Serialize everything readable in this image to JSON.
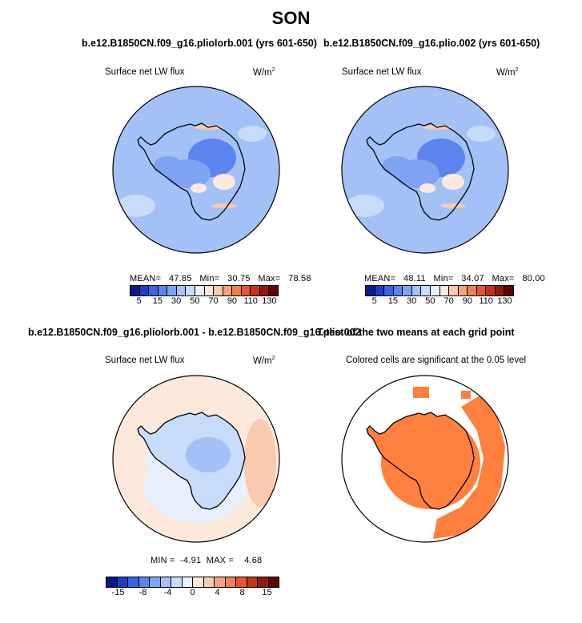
{
  "figure": {
    "title": "SON",
    "panels": [
      {
        "title": "b.e12.B1850CN.f09_g16.pliolorb.001 (yrs 601-650)",
        "left_label": "Surface net LW flux",
        "units": "W/m",
        "units_sup": "2",
        "stats": {
          "mean_label": "MEAN=",
          "mean": "47.85",
          "min_label": "Min=",
          "min": "30.75",
          "max_label": "Max=",
          "max": "78.58"
        }
      },
      {
        "title": "b.e12.B1850CN.f09_g16.plio.002 (yrs 601-650)",
        "left_label": "Surface net LW flux",
        "units": "W/m",
        "units_sup": "2",
        "stats": {
          "mean_label": "MEAN=",
          "mean": "48.11",
          "min_label": "Min=",
          "min": "34.07",
          "max_label": "Max=",
          "max": "80.00"
        }
      },
      {
        "title": "b.e12.B1850CN.f09_g16.pliolorb.001 - b.e12.B1850CN.f09_g16.plio.002",
        "left_label": "Surface net LW flux",
        "units": "W/m",
        "units_sup": "2",
        "stats": {
          "min_label": "MIN =",
          "min": "-4.91",
          "max_label": "MAX =",
          "max": "4.68"
        }
      },
      {
        "title": "T-test of the two means at each grid point",
        "left_label": "Colored cells are significant at the 0.05 level"
      }
    ]
  },
  "chart_data": [
    {
      "type": "heatmap",
      "projection": "south polar stereographic",
      "title": "b.e12.B1850CN.f09_g16.pliolorb.001 (yrs 601-650)",
      "variable": "Surface net LW flux",
      "units": "W/m2",
      "mean": 47.85,
      "min": 30.75,
      "max": 78.58,
      "colorbar": {
        "tick_labels": [
          "5",
          "15",
          "30",
          "50",
          "70",
          "90",
          "110",
          "130"
        ],
        "levels": [
          5,
          10,
          15,
          20,
          30,
          40,
          50,
          60,
          70,
          80,
          90,
          100,
          110,
          120,
          130
        ],
        "colors": [
          "#0a1a8c",
          "#1f3cc8",
          "#3a64e6",
          "#5c84ee",
          "#7ea3f2",
          "#a3c1f7",
          "#c7dbfa",
          "#e8f0fd",
          "#fde8dc",
          "#f9caae",
          "#f5a57e",
          "#ee7f55",
          "#e2572f",
          "#c43518",
          "#921a0c",
          "#5e0606"
        ]
      }
    },
    {
      "type": "heatmap",
      "projection": "south polar stereographic",
      "title": "b.e12.B1850CN.f09_g16.plio.002 (yrs 601-650)",
      "variable": "Surface net LW flux",
      "units": "W/m2",
      "mean": 48.11,
      "min": 34.07,
      "max": 80.0,
      "colorbar": {
        "tick_labels": [
          "5",
          "15",
          "30",
          "50",
          "70",
          "90",
          "110",
          "130"
        ],
        "levels": [
          5,
          10,
          15,
          20,
          30,
          40,
          50,
          60,
          70,
          80,
          90,
          100,
          110,
          120,
          130
        ],
        "colors": [
          "#0a1a8c",
          "#1f3cc8",
          "#3a64e6",
          "#5c84ee",
          "#7ea3f2",
          "#a3c1f7",
          "#c7dbfa",
          "#e8f0fd",
          "#fde8dc",
          "#f9caae",
          "#f5a57e",
          "#ee7f55",
          "#e2572f",
          "#c43518",
          "#921a0c",
          "#5e0606"
        ]
      }
    },
    {
      "type": "heatmap",
      "projection": "south polar stereographic",
      "title": "b.e12.B1850CN.f09_g16.pliolorb.001 - b.e12.B1850CN.f09_g16.plio.002",
      "variable": "Surface net LW flux",
      "units": "W/m2",
      "min": -4.91,
      "max": 4.68,
      "colorbar": {
        "tick_labels": [
          "-15",
          "-8",
          "-4",
          "0",
          "4",
          "8",
          "15"
        ],
        "colors": [
          "#0a1a8c",
          "#1f3cc8",
          "#3a64e6",
          "#5c84ee",
          "#7ea3f2",
          "#a3c1f7",
          "#c7dbfa",
          "#e8f0fd",
          "#fde8dc",
          "#f9caae",
          "#f5a57e",
          "#ee7f55",
          "#e2572f",
          "#c43518",
          "#921a0c",
          "#5e0606"
        ]
      }
    },
    {
      "type": "heatmap",
      "projection": "south polar stereographic",
      "title": "T-test of the two means at each grid point",
      "note": "Colored cells are significant at the 0.05 level",
      "significant_color": "#ff7f3f"
    }
  ]
}
